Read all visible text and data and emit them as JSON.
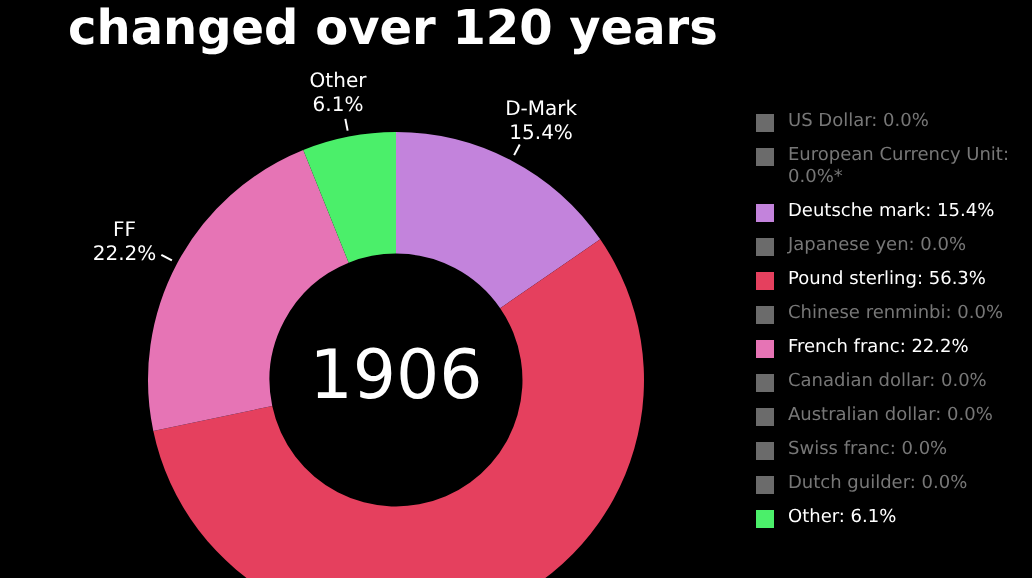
{
  "chart_data": {
    "type": "donut",
    "title": "changed over 120 years",
    "categories": [
      "US Dollar",
      "European Currency Unit",
      "Deutsche mark",
      "Japanese yen",
      "Pound sterling",
      "Chinese renminbi",
      "French franc",
      "Canadian dollar",
      "Australian dollar",
      "Swiss franc",
      "Dutch guilder",
      "Other"
    ],
    "values": [
      0,
      0,
      15.4,
      0,
      56.3,
      0,
      22.2,
      0,
      0,
      0,
      0,
      6.1
    ],
    "value_labels": [
      ": 0.0%",
      ": 0.0%*",
      ": 15.4%",
      ": 0.0%",
      ": 56.3%",
      ": 0.0%",
      ": 22.2%",
      ": 0.0%",
      ": 0.0%",
      ": 0.0%",
      ": 0.0%",
      ": 6.1%"
    ],
    "colors": [
      "#6b6b6b",
      "#6b6b6b",
      "#c383dc",
      "#6b6b6b",
      "#e5405e",
      "#6b6b6b",
      "#e674b5",
      "#6b6b6b",
      "#6b6b6b",
      "#6b6b6b",
      "#6b6b6b",
      "#4bef6a"
    ],
    "annotations": [
      "1906",
      {
        "text": "D-Mark\n15.4%",
        "x": "Deutsche mark"
      },
      {
        "text": "FF\n22.2%",
        "x": "French franc"
      },
      {
        "text": "Other\n6.1%",
        "x": "Other"
      }
    ],
    "legend": "right"
  }
}
